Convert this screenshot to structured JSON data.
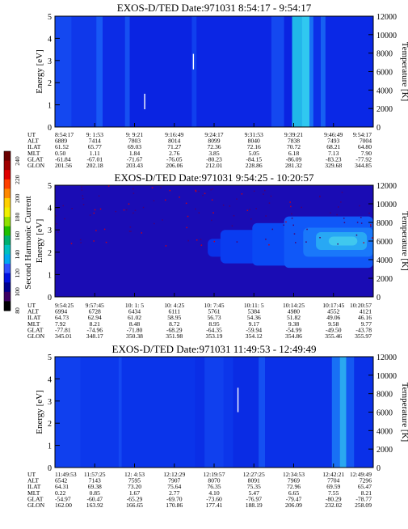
{
  "colorbar": {
    "label": "Second Harmonic Current",
    "ticks": [
      "240",
      "220",
      "200",
      "180",
      "160",
      "140",
      "120",
      "100",
      "80"
    ],
    "colors": [
      "#6a0000",
      "#a00000",
      "#e00000",
      "#ff4000",
      "#ff8800",
      "#ffd000",
      "#f0f000",
      "#90e000",
      "#20c000",
      "#00b070",
      "#00c0c0",
      "#00a8f0",
      "#3050ff",
      "#0010e0",
      "#000090",
      "#3c0064",
      "#000000"
    ]
  },
  "chart_data": [
    {
      "type": "heatmap",
      "title": "EXOS-D/TED   Date:971031   8:54:17 - 9:54:17",
      "ylabel": "Energy [eV]",
      "y2label": "Temperature [K]",
      "ylim": [
        0,
        5
      ],
      "y2lim": [
        0,
        12000
      ],
      "yticks": [
        "0",
        "1",
        "2",
        "3",
        "4",
        "5"
      ],
      "y2ticks": [
        "0",
        "2000",
        "4000",
        "6000",
        "8000",
        "10000",
        "12000"
      ],
      "row_labels": [
        "UT",
        "ALT",
        "ILAT",
        "MLT",
        "GLAT",
        "GLON"
      ],
      "columns": [
        [
          "8:54:17",
          "6889",
          "61.52",
          "0.50",
          "-61.84",
          "201.56"
        ],
        [
          "9: 1:53",
          "7414",
          "65.77",
          "1.11",
          "-67.01",
          "202.18"
        ],
        [
          "9: 9:21",
          "7803",
          "69.03",
          "1.84",
          "-71.67",
          "203.43"
        ],
        [
          "9:16:49",
          "8014",
          "71.27",
          "2.76",
          "-76.05",
          "206.06"
        ],
        [
          "9:24:17",
          "8099",
          "72.36",
          "3.85",
          "-80.23",
          "212.01"
        ],
        [
          "9:31:53",
          "8040",
          "72.16",
          "5.05",
          "-84.15",
          "228.86"
        ],
        [
          "9:39:21",
          "7838",
          "70.72",
          "6.18",
          "-86.09",
          "281.32"
        ],
        [
          "9:46:49",
          "7493",
          "68.21",
          "7.13",
          "-83.23",
          "329.68"
        ],
        [
          "9:54:17",
          "7004",
          "64.80",
          "7.90",
          "-77.92",
          "344.85"
        ]
      ],
      "background": "#0a28e8",
      "bands": [
        {
          "x0": 0.0,
          "x1": 0.052,
          "color": "#1448f0"
        },
        {
          "x0": 0.052,
          "x1": 0.13,
          "color": "#0f38ea"
        },
        {
          "x0": 0.13,
          "x1": 0.15,
          "color": "#1858f5"
        },
        {
          "x0": 0.15,
          "x1": 0.22,
          "color": "#0c2ce6"
        },
        {
          "x0": 0.22,
          "x1": 0.235,
          "color": "#1650f2"
        },
        {
          "x0": 0.235,
          "x1": 0.43,
          "color": "#0a24e2"
        },
        {
          "x0": 0.43,
          "x1": 0.445,
          "color": "#1040ee"
        },
        {
          "x0": 0.445,
          "x1": 0.68,
          "color": "#0b26e4"
        },
        {
          "x0": 0.68,
          "x1": 0.72,
          "color": "#1448f0"
        },
        {
          "x0": 0.72,
          "x1": 0.745,
          "color": "#0a24e2"
        },
        {
          "x0": 0.745,
          "x1": 0.775,
          "color": "#20b8e8"
        },
        {
          "x0": 0.775,
          "x1": 0.8,
          "color": "#30c8f0"
        },
        {
          "x0": 0.8,
          "x1": 0.812,
          "color": "#1870f5"
        },
        {
          "x0": 0.812,
          "x1": 0.835,
          "color": "#0c30e8"
        },
        {
          "x0": 0.835,
          "x1": 0.85,
          "color": "#1660f2"
        },
        {
          "x0": 0.85,
          "x1": 1.0,
          "color": "#0a28e6"
        }
      ],
      "blobs": [],
      "streaks": [
        {
          "x": 0.435,
          "y0": 2.6,
          "y1": 3.3
        },
        {
          "x": 0.282,
          "y0": 0.8,
          "y1": 1.5
        }
      ]
    },
    {
      "type": "heatmap",
      "title": "EXOS-D/TED    Date:971031   9:54:25 - 10:20:57",
      "ylabel": "Energy [eV]",
      "y2label": "Temperature [K]",
      "ylim": [
        0,
        5
      ],
      "y2lim": [
        0,
        12000
      ],
      "yticks": [
        "0",
        "1",
        "2",
        "3",
        "4",
        "5"
      ],
      "y2ticks": [
        "0",
        "2000",
        "4000",
        "6000",
        "8000",
        "10000",
        "12000"
      ],
      "row_labels": [
        "UT",
        "ALT",
        "ILAT",
        "MLT",
        "GLAT",
        "GLON"
      ],
      "columns": [
        [
          "9:54:25",
          "6994",
          "64.73",
          "7.92",
          "-77.81",
          "345.01"
        ],
        [
          "9:57:45",
          "6728",
          "62.94",
          "8.21",
          "-74.96",
          "348.17"
        ],
        [
          "10: 1: 5",
          "6434",
          "61.02",
          "8.48",
          "-71.80",
          "350.38"
        ],
        [
          "10: 4:25",
          "6111",
          "58.95",
          "8.72",
          "-68.29",
          "351.98"
        ],
        [
          "10: 7:45",
          "5761",
          "56.73",
          "8.95",
          "-64.35",
          "353.19"
        ],
        [
          "10:11: 5",
          "5384",
          "54.36",
          "9.17",
          "-59.94",
          "354.12"
        ],
        [
          "10:14:25",
          "4980",
          "51.82",
          "9.38",
          "-54.99",
          "354.86"
        ],
        [
          "10:17:45",
          "4552",
          "49.06",
          "9.58",
          "-49.50",
          "355.46"
        ],
        [
          "10:20:57",
          "4121",
          "46.16",
          "9.77",
          "-43.78",
          "355.97"
        ]
      ],
      "background": "#1810b8",
      "bands": [
        {
          "x0": 0.0,
          "x1": 1.0,
          "color": "#1a0cb4"
        }
      ],
      "blobs": [
        {
          "x0": 0.48,
          "x1": 0.58,
          "y0": 1.8,
          "y1": 2.6,
          "color": "#0a30e8"
        },
        {
          "x0": 0.52,
          "x1": 0.75,
          "y0": 1.5,
          "y1": 3.0,
          "color": "#0a3cf0"
        },
        {
          "x0": 0.62,
          "x1": 0.8,
          "y0": 1.4,
          "y1": 3.3,
          "color": "#0a48f4"
        },
        {
          "x0": 0.72,
          "x1": 1.0,
          "y0": 1.3,
          "y1": 3.6,
          "color": "#1058f8"
        },
        {
          "x0": 0.78,
          "x1": 1.0,
          "y0": 1.8,
          "y1": 3.1,
          "color": "#1a78fa"
        },
        {
          "x0": 0.82,
          "x1": 0.98,
          "y0": 2.1,
          "y1": 2.9,
          "color": "#28a8f4"
        },
        {
          "x0": 0.86,
          "x1": 0.95,
          "y0": 2.3,
          "y1": 2.7,
          "color": "#40c8ee"
        }
      ],
      "streaks": []
    },
    {
      "type": "heatmap",
      "title": "EXOS-D/TED   Date:971031   11:49:53 - 12:49:49",
      "ylabel": "Energy [eV]",
      "y2label": "Temperature [K]",
      "ylim": [
        0,
        5
      ],
      "y2lim": [
        0,
        12000
      ],
      "yticks": [
        "0",
        "1",
        "2",
        "3",
        "4",
        "5"
      ],
      "y2ticks": [
        "0",
        "2000",
        "4000",
        "6000",
        "8000",
        "10000",
        "12000"
      ],
      "row_labels": [
        "UT",
        "ALT",
        "ILAT",
        "MLT",
        "GLAT",
        "GLON"
      ],
      "columns": [
        [
          "11:49:53",
          "6542",
          "64.31",
          "0.22",
          "-54.97",
          "162.00"
        ],
        [
          "11:57:25",
          "7143",
          "69.38",
          "0.85",
          "-60.47",
          "163.92"
        ],
        [
          "12: 4:53",
          "7595",
          "73.20",
          "1.67",
          "-65.29",
          "166.65"
        ],
        [
          "12:12:29",
          "7907",
          "75.64",
          "2.77",
          "-69.70",
          "170.86"
        ],
        [
          "12:19:57",
          "8070",
          "76.35",
          "4.10",
          "-73.60",
          "177.41"
        ],
        [
          "12:27:25",
          "8091",
          "75.35",
          "5.47",
          "-76.97",
          "188.19"
        ],
        [
          "12:34:53",
          "7969",
          "72.96",
          "6.65",
          "-79.47",
          "206.09"
        ],
        [
          "12:42:21",
          "7704",
          "69.59",
          "7.55",
          "-80.29",
          "232.02"
        ],
        [
          "12:49:49",
          "7296",
          "65.47",
          "8.21",
          "-78.77",
          "258.09"
        ]
      ],
      "background": "#0a30ea",
      "bands": [
        {
          "x0": 0.0,
          "x1": 0.08,
          "color": "#1040ee"
        },
        {
          "x0": 0.08,
          "x1": 0.2,
          "color": "#0c38ec"
        },
        {
          "x0": 0.2,
          "x1": 0.21,
          "color": "#1448f2"
        },
        {
          "x0": 0.21,
          "x1": 0.44,
          "color": "#0a34ea"
        },
        {
          "x0": 0.44,
          "x1": 0.47,
          "color": "#0a2ee6"
        },
        {
          "x0": 0.47,
          "x1": 0.53,
          "color": "#1040ee"
        },
        {
          "x0": 0.53,
          "x1": 0.56,
          "color": "#0c36ea"
        },
        {
          "x0": 0.56,
          "x1": 0.64,
          "color": "#0a2ce4"
        },
        {
          "x0": 0.64,
          "x1": 0.66,
          "color": "#1450f2"
        },
        {
          "x0": 0.66,
          "x1": 0.87,
          "color": "#0a30e8"
        },
        {
          "x0": 0.87,
          "x1": 0.895,
          "color": "#1870f5"
        },
        {
          "x0": 0.895,
          "x1": 0.915,
          "color": "#2aa8f0"
        },
        {
          "x0": 0.915,
          "x1": 0.94,
          "color": "#1458f2"
        },
        {
          "x0": 0.94,
          "x1": 1.0,
          "color": "#0a30e8"
        }
      ],
      "blobs": [],
      "streaks": [
        {
          "x": 0.575,
          "y0": 2.5,
          "y1": 3.6
        }
      ]
    }
  ]
}
